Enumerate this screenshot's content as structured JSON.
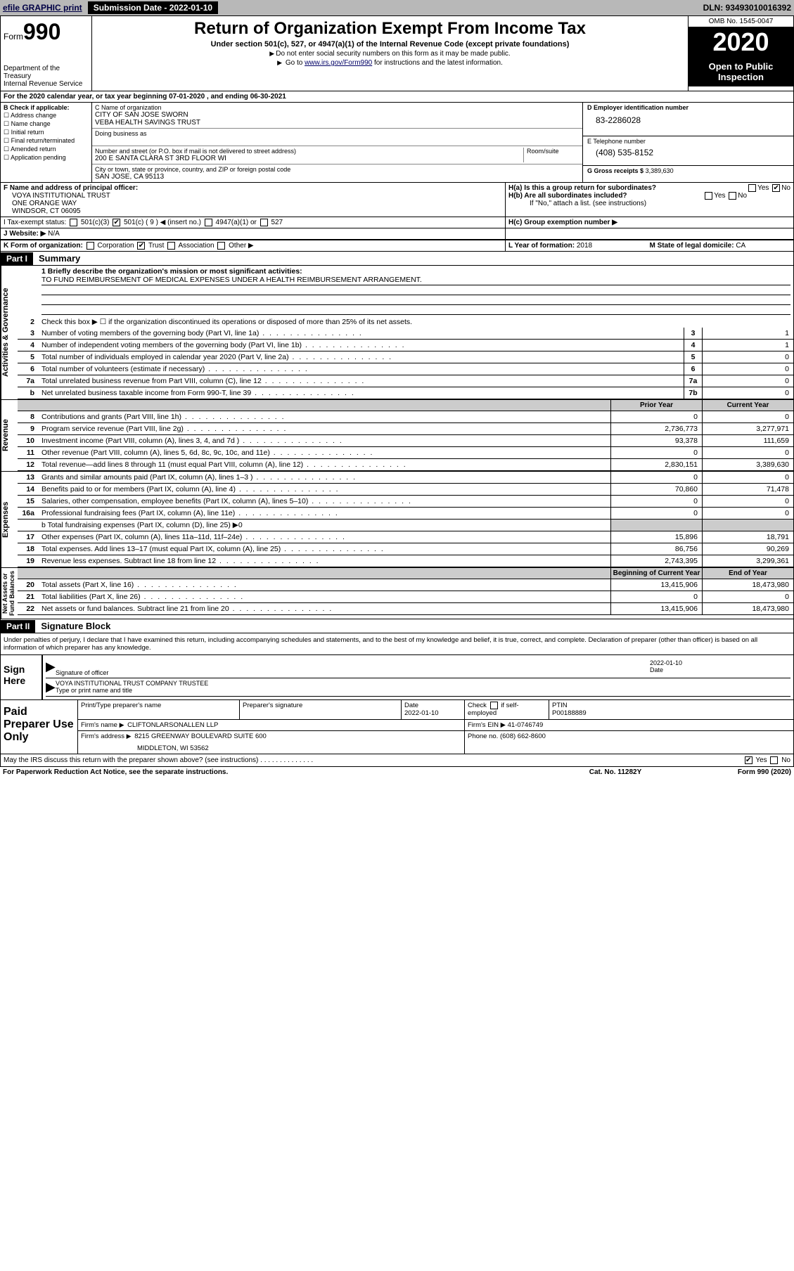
{
  "topbar": {
    "efile": "efile GRAPHIC print",
    "submission": "Submission Date - 2022-01-10",
    "dln": "DLN: 93493010016392"
  },
  "header": {
    "form_prefix": "Form",
    "form_num": "990",
    "dept": "Department of the Treasury\nInternal Revenue Service",
    "title": "Return of Organization Exempt From Income Tax",
    "sub1": "Under section 501(c), 527, or 4947(a)(1) of the Internal Revenue Code (except private foundations)",
    "sub2a": "Do not enter social security numbers on this form as it may be made public.",
    "sub2b_pre": "Go to ",
    "sub2b_link": "www.irs.gov/Form990",
    "sub2b_post": " for instructions and the latest information.",
    "omb": "OMB No. 1545-0047",
    "year": "2020",
    "public": "Open to Public Inspection"
  },
  "secA": "For the 2020 calendar year, or tax year beginning 07-01-2020     , and ending 06-30-2021",
  "blockB": {
    "title": "B Check if applicable:",
    "opts": [
      "Address change",
      "Name change",
      "Initial return",
      "Final return/terminated",
      "Amended return",
      "Application pending"
    ]
  },
  "blockC": {
    "name_lbl": "C Name of organization",
    "name": "CITY OF SAN JOSE SWORN\nVEBA HEALTH SAVINGS TRUST",
    "dba_lbl": "Doing business as",
    "addr_lbl": "Number and street (or P.O. box if mail is not delivered to street address)",
    "room_lbl": "Room/suite",
    "addr": "200 E SANTA CLARA ST 3RD FLOOR WI",
    "city_lbl": "City or town, state or province, country, and ZIP or foreign postal code",
    "city": "SAN JOSE, CA  95113"
  },
  "blockD": {
    "lbl": "D Employer identification number",
    "val": "83-2286028"
  },
  "blockE": {
    "lbl": "E Telephone number",
    "val": "(408) 535-8152"
  },
  "blockG": {
    "lbl": "G Gross receipts $",
    "val": "3,389,630"
  },
  "blockF": {
    "lbl": "F  Name and address of principal officer:",
    "val": "VOYA INSTITUTIONAL TRUST\nONE ORANGE WAY\nWINDSOR, CT  06095"
  },
  "blockH": {
    "a": "H(a)  Is this a group return for subordinates?",
    "a_yes": "Yes",
    "a_no": "No",
    "b": "H(b)  Are all subordinates included?",
    "b_yes": "Yes",
    "b_no": "No",
    "b_note": "If \"No,\" attach a list. (see instructions)",
    "c": "H(c)  Group exemption number ▶"
  },
  "blockI": {
    "lbl": "I   Tax-exempt status:",
    "o1": "501(c)(3)",
    "o2": "501(c) ( 9 ) ◀ (insert no.)",
    "o3": "4947(a)(1) or",
    "o4": "527"
  },
  "blockJ": {
    "lbl": "J   Website: ▶",
    "val": "N/A"
  },
  "blockK": {
    "lbl": "K Form of organization:",
    "o1": "Corporation",
    "o2": "Trust",
    "o3": "Association",
    "o4": "Other ▶"
  },
  "blockL": {
    "lbl": "L Year of formation:",
    "val": "2018"
  },
  "blockM": {
    "lbl": "M State of legal domicile:",
    "val": "CA"
  },
  "part1": {
    "hdr": "Part I",
    "title": "Summary"
  },
  "mission": {
    "lbl": "1  Briefly describe the organization's mission or most significant activities:",
    "val": "TO FUND REIMBURSEMENT OF MEDICAL EXPENSES UNDER A HEALTH REIMBURSEMENT ARRANGEMENT."
  },
  "line2": "Check this box ▶ ☐  if the organization discontinued its operations or disposed of more than 25% of its net assets.",
  "gov_lines": [
    {
      "n": "3",
      "d": "Number of voting members of the governing body (Part VI, line 1a)",
      "box": "3",
      "v": "1"
    },
    {
      "n": "4",
      "d": "Number of independent voting members of the governing body (Part VI, line 1b)",
      "box": "4",
      "v": "1"
    },
    {
      "n": "5",
      "d": "Total number of individuals employed in calendar year 2020 (Part V, line 2a)",
      "box": "5",
      "v": "0"
    },
    {
      "n": "6",
      "d": "Total number of volunteers (estimate if necessary)",
      "box": "6",
      "v": "0"
    },
    {
      "n": "7a",
      "d": "Total unrelated business revenue from Part VIII, column (C), line 12",
      "box": "7a",
      "v": "0"
    },
    {
      "n": "b",
      "d": "Net unrelated business taxable income from Form 990-T, line 39",
      "box": "7b",
      "v": "0"
    }
  ],
  "col_hdr": {
    "py": "Prior Year",
    "cy": "Current Year",
    "boy": "Beginning of Current Year",
    "eoy": "End of Year"
  },
  "rev_lines": [
    {
      "n": "8",
      "d": "Contributions and grants (Part VIII, line 1h)",
      "py": "0",
      "cy": "0"
    },
    {
      "n": "9",
      "d": "Program service revenue (Part VIII, line 2g)",
      "py": "2,736,773",
      "cy": "3,277,971"
    },
    {
      "n": "10",
      "d": "Investment income (Part VIII, column (A), lines 3, 4, and 7d )",
      "py": "93,378",
      "cy": "111,659"
    },
    {
      "n": "11",
      "d": "Other revenue (Part VIII, column (A), lines 5, 6d, 8c, 9c, 10c, and 11e)",
      "py": "0",
      "cy": "0"
    },
    {
      "n": "12",
      "d": "Total revenue—add lines 8 through 11 (must equal Part VIII, column (A), line 12)",
      "py": "2,830,151",
      "cy": "3,389,630"
    }
  ],
  "exp_lines": [
    {
      "n": "13",
      "d": "Grants and similar amounts paid (Part IX, column (A), lines 1–3 )",
      "py": "0",
      "cy": "0"
    },
    {
      "n": "14",
      "d": "Benefits paid to or for members (Part IX, column (A), line 4)",
      "py": "70,860",
      "cy": "71,478"
    },
    {
      "n": "15",
      "d": "Salaries, other compensation, employee benefits (Part IX, column (A), lines 5–10)",
      "py": "0",
      "cy": "0"
    },
    {
      "n": "16a",
      "d": "Professional fundraising fees (Part IX, column (A), line 11e)",
      "py": "0",
      "cy": "0"
    }
  ],
  "exp_b": "b  Total fundraising expenses (Part IX, column (D), line 25) ▶0",
  "exp_lines2": [
    {
      "n": "17",
      "d": "Other expenses (Part IX, column (A), lines 11a–11d, 11f–24e)",
      "py": "15,896",
      "cy": "18,791"
    },
    {
      "n": "18",
      "d": "Total expenses. Add lines 13–17 (must equal Part IX, column (A), line 25)",
      "py": "86,756",
      "cy": "90,269"
    },
    {
      "n": "19",
      "d": "Revenue less expenses. Subtract line 18 from line 12",
      "py": "2,743,395",
      "cy": "3,299,361"
    }
  ],
  "bal_lines": [
    {
      "n": "20",
      "d": "Total assets (Part X, line 16)",
      "py": "13,415,906",
      "cy": "18,473,980"
    },
    {
      "n": "21",
      "d": "Total liabilities (Part X, line 26)",
      "py": "0",
      "cy": "0"
    },
    {
      "n": "22",
      "d": "Net assets or fund balances. Subtract line 21 from line 20",
      "py": "13,415,906",
      "cy": "18,473,980"
    }
  ],
  "vtabs": {
    "gov": "Activities & Governance",
    "rev": "Revenue",
    "exp": "Expenses",
    "bal": "Net Assets or\nFund Balances"
  },
  "part2": {
    "hdr": "Part II",
    "title": "Signature Block"
  },
  "perjury": "Under penalties of perjury, I declare that I have examined this return, including accompanying schedules and statements, and to the best of my knowledge and belief, it is true, correct, and complete. Declaration of preparer (other than officer) is based on all information of which preparer has any knowledge.",
  "sign": {
    "here": "Sign Here",
    "sig_lbl": "Signature of officer",
    "date_lbl": "Date",
    "date": "2022-01-10",
    "name": "VOYA INSTITUTIONAL TRUST COMPANY TRUSTEE",
    "name_lbl": "Type or print name and title"
  },
  "prep": {
    "title": "Paid Preparer Use Only",
    "h1": "Print/Type preparer's name",
    "h2": "Preparer's signature",
    "h3": "Date",
    "h3v": "2022-01-10",
    "h4a": "Check",
    "h4b": "if self-employed",
    "h5": "PTIN",
    "h5v": "P00188889",
    "firm_lbl": "Firm's name",
    "firm": "CLIFTONLARSONALLEN LLP",
    "ein_lbl": "Firm's EIN ▶",
    "ein": "41-0746749",
    "addr_lbl": "Firm's address",
    "addr1": "8215 GREENWAY BOULEVARD SUITE 600",
    "addr2": "MIDDLETON, WI  53562",
    "phone_lbl": "Phone no.",
    "phone": "(608) 662-8600"
  },
  "discuss": {
    "q": "May the IRS discuss this return with the preparer shown above? (see instructions)",
    "yes": "Yes",
    "no": "No"
  },
  "footer": {
    "pra": "For Paperwork Reduction Act Notice, see the separate instructions.",
    "cat": "Cat. No. 11282Y",
    "form": "Form 990 (2020)"
  }
}
